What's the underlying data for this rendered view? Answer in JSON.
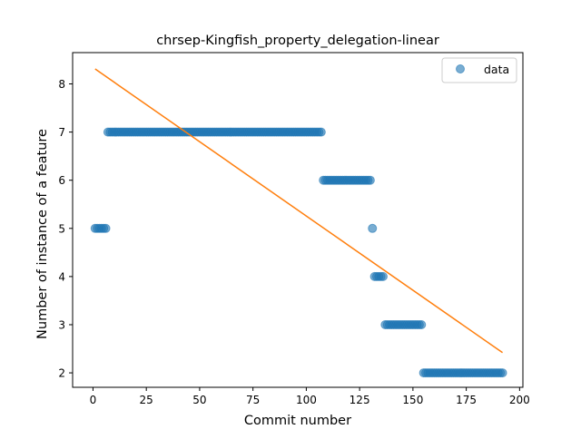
{
  "chart_data": {
    "type": "scatter",
    "title": "chrsep-Kingfish_property_delegation-linear",
    "xlabel": "Commit number",
    "ylabel": "Number of instance of a feature",
    "xlim": [
      -9.55,
      201.55
    ],
    "ylim": [
      1.7,
      8.65
    ],
    "xticks": [
      0,
      25,
      50,
      75,
      100,
      125,
      150,
      175,
      200
    ],
    "yticks": [
      2,
      3,
      4,
      5,
      6,
      7,
      8
    ],
    "legend": {
      "position": "top-right",
      "entries": [
        "data"
      ]
    },
    "colors": {
      "points": "#1f77b4",
      "fit": "#ff7f0e"
    },
    "series": [
      {
        "name": "data",
        "kind": "points",
        "segments": [
          {
            "x_start": 1,
            "x_end": 6,
            "y": 5
          },
          {
            "x_start": 7,
            "x_end": 107,
            "y": 7
          },
          {
            "x_start": 108,
            "x_end": 130,
            "y": 6
          },
          {
            "x_start": 131,
            "x_end": 131,
            "y": 5
          },
          {
            "x_start": 132,
            "x_end": 136,
            "y": 4
          },
          {
            "x_start": 137,
            "x_end": 154,
            "y": 3
          },
          {
            "x_start": 155,
            "x_end": 192,
            "y": 2
          }
        ]
      },
      {
        "kind": "fit_line",
        "x": [
          1,
          192
        ],
        "y": [
          8.31,
          2.42
        ]
      }
    ]
  }
}
